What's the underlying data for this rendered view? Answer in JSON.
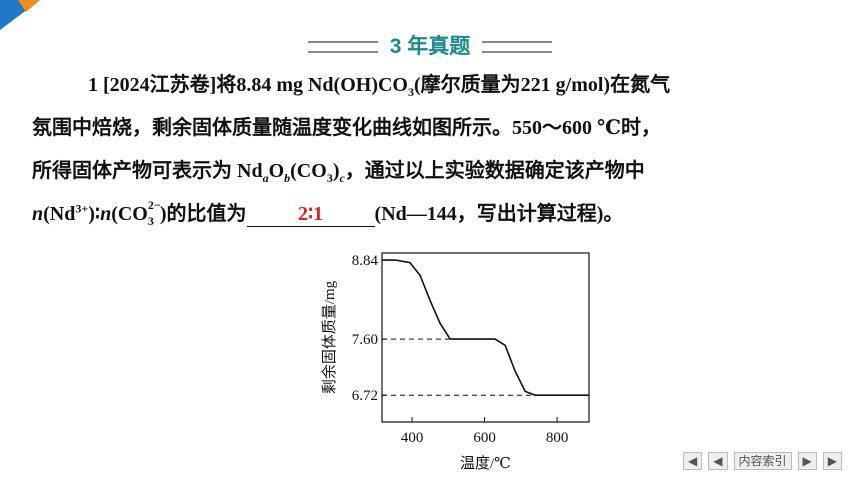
{
  "header": {
    "title": "3 年真题"
  },
  "question": {
    "lines": [
      [
        "1 [2024江苏卷]将8.84 mg Nd(OH)CO",
        "3",
        "(摩尔质量为221 g/mol)在氮气"
      ],
      [
        "氛围中焙烧，剩余固体质量随温度变化曲线如图所示。550～600 ℃时，"
      ],
      [
        "所得固体产物可表示为 Nd",
        "a",
        "O",
        "b",
        "(CO",
        "3",
        ")",
        "c",
        "，通过以上实验数据确定该产物中"
      ],
      [
        "n",
        "(Nd",
        "3+",
        ")∶",
        "n",
        "(CO",
        "3",
        "2−",
        ")的比值为",
        "2∶1",
        "(Nd—144，写出计算过程)。"
      ]
    ]
  },
  "nav": {
    "index": "内容索引"
  },
  "chart_data": {
    "type": "line",
    "xlabel": "温度/℃",
    "ylabel": "剩余固体质量/mg",
    "x": [
      317,
      353,
      394,
      422,
      450,
      477,
      505,
      532,
      629,
      657,
      684,
      712,
      740,
      888
    ],
    "values": [
      8.84,
      8.84,
      8.8,
      8.6,
      8.2,
      7.85,
      7.6,
      7.6,
      7.6,
      7.5,
      7.1,
      6.78,
      6.72,
      6.72
    ],
    "color": "#111111",
    "xlim": [
      317,
      888
    ],
    "ylim": [
      6.3,
      8.95
    ],
    "xticks": [
      400,
      600,
      800
    ],
    "yticks": [
      {
        "value": 6.72,
        "label": "6.72"
      },
      {
        "value": 7.6,
        "label": "7.60"
      },
      {
        "value": 8.84,
        "label": "8.84"
      }
    ],
    "dashed_guides": true
  }
}
